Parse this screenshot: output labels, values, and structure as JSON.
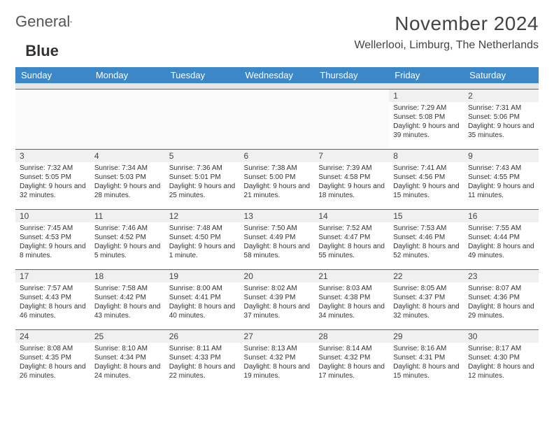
{
  "logo": {
    "text1": "General",
    "text2": "Blue"
  },
  "header": {
    "title": "November 2024",
    "location": "Wellerlooi, Limburg, The Netherlands"
  },
  "colors": {
    "header_bg": "#3b87c8",
    "header_text": "#ffffff",
    "border": "#3b6d99"
  },
  "weekdays": [
    "Sunday",
    "Monday",
    "Tuesday",
    "Wednesday",
    "Thursday",
    "Friday",
    "Saturday"
  ],
  "weeks": [
    [
      null,
      null,
      null,
      null,
      null,
      {
        "day": "1",
        "sunrise": "Sunrise: 7:29 AM",
        "sunset": "Sunset: 5:08 PM",
        "daylight": "Daylight: 9 hours and 39 minutes."
      },
      {
        "day": "2",
        "sunrise": "Sunrise: 7:31 AM",
        "sunset": "Sunset: 5:06 PM",
        "daylight": "Daylight: 9 hours and 35 minutes."
      }
    ],
    [
      {
        "day": "3",
        "sunrise": "Sunrise: 7:32 AM",
        "sunset": "Sunset: 5:05 PM",
        "daylight": "Daylight: 9 hours and 32 minutes."
      },
      {
        "day": "4",
        "sunrise": "Sunrise: 7:34 AM",
        "sunset": "Sunset: 5:03 PM",
        "daylight": "Daylight: 9 hours and 28 minutes."
      },
      {
        "day": "5",
        "sunrise": "Sunrise: 7:36 AM",
        "sunset": "Sunset: 5:01 PM",
        "daylight": "Daylight: 9 hours and 25 minutes."
      },
      {
        "day": "6",
        "sunrise": "Sunrise: 7:38 AM",
        "sunset": "Sunset: 5:00 PM",
        "daylight": "Daylight: 9 hours and 21 minutes."
      },
      {
        "day": "7",
        "sunrise": "Sunrise: 7:39 AM",
        "sunset": "Sunset: 4:58 PM",
        "daylight": "Daylight: 9 hours and 18 minutes."
      },
      {
        "day": "8",
        "sunrise": "Sunrise: 7:41 AM",
        "sunset": "Sunset: 4:56 PM",
        "daylight": "Daylight: 9 hours and 15 minutes."
      },
      {
        "day": "9",
        "sunrise": "Sunrise: 7:43 AM",
        "sunset": "Sunset: 4:55 PM",
        "daylight": "Daylight: 9 hours and 11 minutes."
      }
    ],
    [
      {
        "day": "10",
        "sunrise": "Sunrise: 7:45 AM",
        "sunset": "Sunset: 4:53 PM",
        "daylight": "Daylight: 9 hours and 8 minutes."
      },
      {
        "day": "11",
        "sunrise": "Sunrise: 7:46 AM",
        "sunset": "Sunset: 4:52 PM",
        "daylight": "Daylight: 9 hours and 5 minutes."
      },
      {
        "day": "12",
        "sunrise": "Sunrise: 7:48 AM",
        "sunset": "Sunset: 4:50 PM",
        "daylight": "Daylight: 9 hours and 1 minute."
      },
      {
        "day": "13",
        "sunrise": "Sunrise: 7:50 AM",
        "sunset": "Sunset: 4:49 PM",
        "daylight": "Daylight: 8 hours and 58 minutes."
      },
      {
        "day": "14",
        "sunrise": "Sunrise: 7:52 AM",
        "sunset": "Sunset: 4:47 PM",
        "daylight": "Daylight: 8 hours and 55 minutes."
      },
      {
        "day": "15",
        "sunrise": "Sunrise: 7:53 AM",
        "sunset": "Sunset: 4:46 PM",
        "daylight": "Daylight: 8 hours and 52 minutes."
      },
      {
        "day": "16",
        "sunrise": "Sunrise: 7:55 AM",
        "sunset": "Sunset: 4:44 PM",
        "daylight": "Daylight: 8 hours and 49 minutes."
      }
    ],
    [
      {
        "day": "17",
        "sunrise": "Sunrise: 7:57 AM",
        "sunset": "Sunset: 4:43 PM",
        "daylight": "Daylight: 8 hours and 46 minutes."
      },
      {
        "day": "18",
        "sunrise": "Sunrise: 7:58 AM",
        "sunset": "Sunset: 4:42 PM",
        "daylight": "Daylight: 8 hours and 43 minutes."
      },
      {
        "day": "19",
        "sunrise": "Sunrise: 8:00 AM",
        "sunset": "Sunset: 4:41 PM",
        "daylight": "Daylight: 8 hours and 40 minutes."
      },
      {
        "day": "20",
        "sunrise": "Sunrise: 8:02 AM",
        "sunset": "Sunset: 4:39 PM",
        "daylight": "Daylight: 8 hours and 37 minutes."
      },
      {
        "day": "21",
        "sunrise": "Sunrise: 8:03 AM",
        "sunset": "Sunset: 4:38 PM",
        "daylight": "Daylight: 8 hours and 34 minutes."
      },
      {
        "day": "22",
        "sunrise": "Sunrise: 8:05 AM",
        "sunset": "Sunset: 4:37 PM",
        "daylight": "Daylight: 8 hours and 32 minutes."
      },
      {
        "day": "23",
        "sunrise": "Sunrise: 8:07 AM",
        "sunset": "Sunset: 4:36 PM",
        "daylight": "Daylight: 8 hours and 29 minutes."
      }
    ],
    [
      {
        "day": "24",
        "sunrise": "Sunrise: 8:08 AM",
        "sunset": "Sunset: 4:35 PM",
        "daylight": "Daylight: 8 hours and 26 minutes."
      },
      {
        "day": "25",
        "sunrise": "Sunrise: 8:10 AM",
        "sunset": "Sunset: 4:34 PM",
        "daylight": "Daylight: 8 hours and 24 minutes."
      },
      {
        "day": "26",
        "sunrise": "Sunrise: 8:11 AM",
        "sunset": "Sunset: 4:33 PM",
        "daylight": "Daylight: 8 hours and 22 minutes."
      },
      {
        "day": "27",
        "sunrise": "Sunrise: 8:13 AM",
        "sunset": "Sunset: 4:32 PM",
        "daylight": "Daylight: 8 hours and 19 minutes."
      },
      {
        "day": "28",
        "sunrise": "Sunrise: 8:14 AM",
        "sunset": "Sunset: 4:32 PM",
        "daylight": "Daylight: 8 hours and 17 minutes."
      },
      {
        "day": "29",
        "sunrise": "Sunrise: 8:16 AM",
        "sunset": "Sunset: 4:31 PM",
        "daylight": "Daylight: 8 hours and 15 minutes."
      },
      {
        "day": "30",
        "sunrise": "Sunrise: 8:17 AM",
        "sunset": "Sunset: 4:30 PM",
        "daylight": "Daylight: 8 hours and 12 minutes."
      }
    ]
  ]
}
